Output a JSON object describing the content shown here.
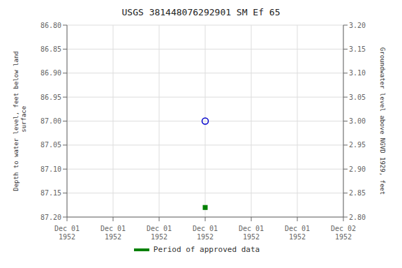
{
  "chart_data": {
    "type": "scatter",
    "title": "USGS 381448076292901 SM Ef  65",
    "x_label": null,
    "y_label": "Depth to water level, feet below land\n surface",
    "y2_label": "Groundwater level above NGVD 1929, feet",
    "categories": [
      "Dec 01\n1952",
      "Dec 01\n1952",
      "Dec 01\n1952",
      "Dec 01\n1952",
      "Dec 01\n1952",
      "Dec 01\n1952",
      "Dec 02\n1952"
    ],
    "series": [
      {
        "color": "#0000cc",
        "marker": "circle",
        "values": [
          null,
          null,
          null,
          87.0,
          null,
          null,
          null
        ]
      },
      {
        "name": "Period of approved data",
        "color": "#008000",
        "marker": "square",
        "values": [
          null,
          null,
          null,
          87.18,
          null,
          null,
          null
        ]
      }
    ],
    "ylim": [
      87.2,
      86.8
    ],
    "yticks": [
      {
        "value": 86.8,
        "label": "86.80"
      },
      86.85,
      {
        "value": 86.9,
        "label": "86.90"
      },
      86.95,
      {
        "value": 87.0,
        "label": "87.00"
      },
      87.05,
      {
        "value": 87.1,
        "label": "87.10"
      },
      87.15,
      {
        "value": 87.2,
        "label": "87.20"
      }
    ],
    "y2lim": [
      2.8,
      3.2
    ],
    "y2ticks": [
      {
        "value": 2.8,
        "label": "2.80"
      },
      2.85,
      {
        "value": 2.9,
        "label": "2.90"
      },
      2.95,
      {
        "value": 3.0,
        "label": "3.00"
      },
      3.05,
      {
        "value": 3.1,
        "label": "3.10"
      },
      3.15,
      {
        "value": 3.2,
        "label": "3.20"
      }
    ],
    "grid": true
  }
}
